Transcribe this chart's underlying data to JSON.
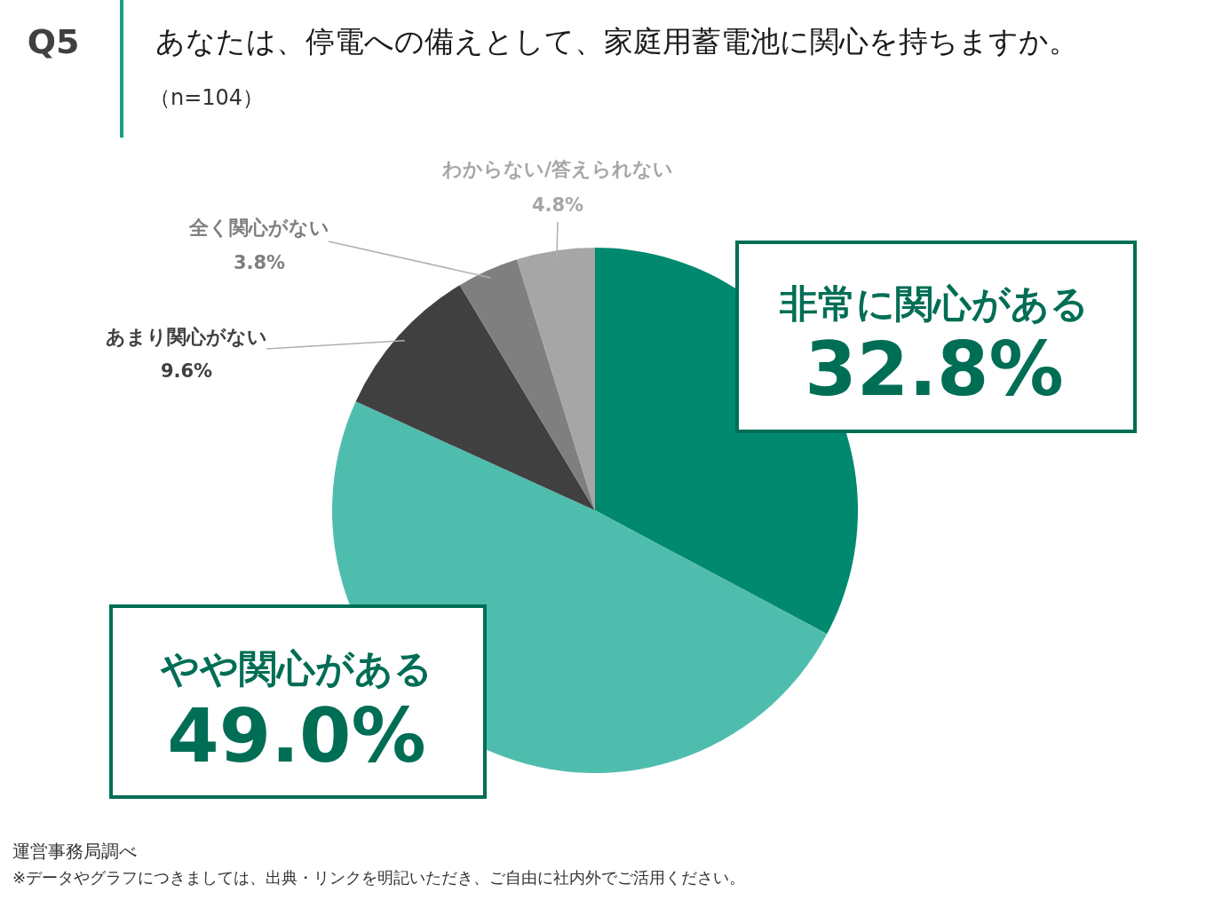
{
  "chart_data": {
    "type": "pie",
    "title": "あなたは、停電への備えとして、家庭用蓄電池に関心を持ちますか。",
    "subtitle": "（n=104）",
    "categories": [
      "非常に関心がある",
      "やや関心がある",
      "あまり関心がない",
      "全く関心がない",
      "わからない/答えられない"
    ],
    "values": [
      32.8,
      49.0,
      9.6,
      3.8,
      4.8
    ],
    "colors": [
      "#00896f",
      "#4fbdae",
      "#404040",
      "#7f7f7f",
      "#a6a6a6"
    ],
    "value_labels": [
      "32.8%",
      "49.0%",
      "9.6%",
      "3.8%",
      "4.8%"
    ],
    "annotations": [
      "Q5",
      "運営事務局調べ",
      "※データやグラフにつきましては、出典・リンクを明記いただき、ご自由に社内外でご活用ください。"
    ]
  }
}
